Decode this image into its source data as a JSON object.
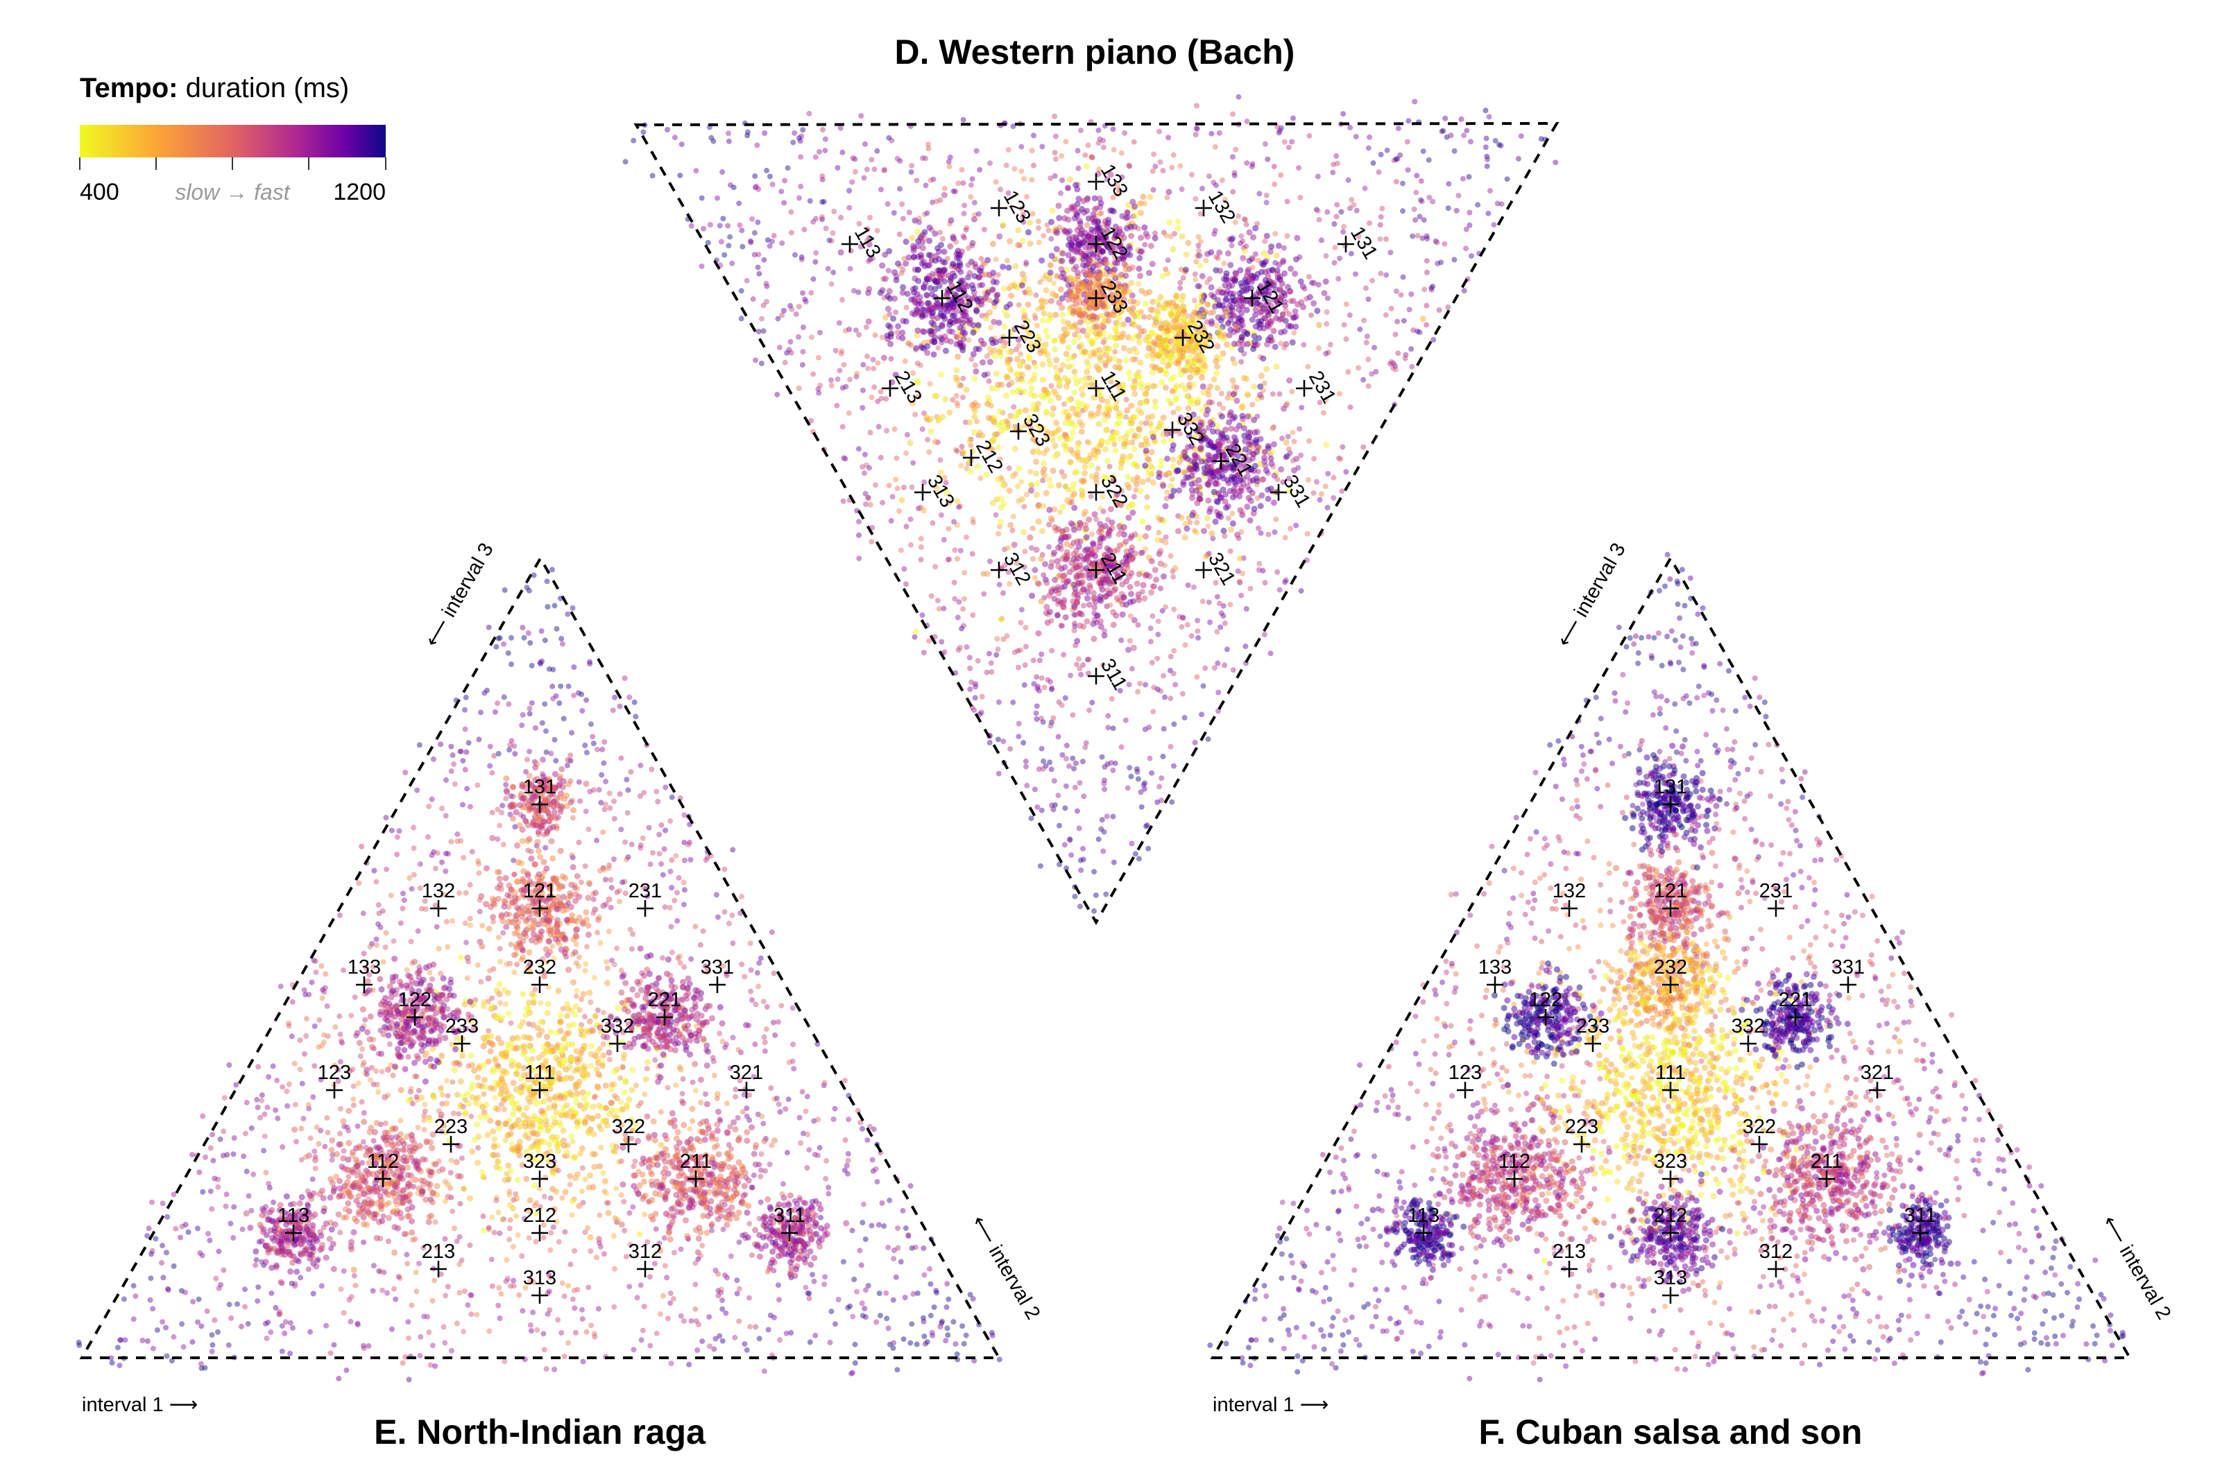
{
  "legend": {
    "title_bold": "Tempo:",
    "title_rest": " duration (ms)",
    "min_label": "400",
    "mid_label": "slow → fast",
    "max_label": "1200",
    "colors": [
      "#f0f921",
      "#fca636",
      "#e16462",
      "#b12a90",
      "#6a00a8",
      "#0d0887"
    ]
  },
  "chart_data": [
    {
      "type": "scatter",
      "title": "D. Western piano (Bach)",
      "orientation": "inverted",
      "markers": [
        {
          "label": "111",
          "x": 0.333,
          "y": 0.333,
          "size": 0.6
        },
        {
          "label": "112",
          "x": 0.333,
          "y": 0.667,
          "size": 0.0
        },
        {
          "label": "113",
          "x": 0.333,
          "y": 0.833,
          "size": 0.0
        },
        {
          "label": "121",
          "x": 0.667,
          "y": 0.667,
          "size": 0.0
        },
        {
          "label": "122",
          "x": 0.5,
          "y": 0.75,
          "size": 0.0
        },
        {
          "label": "123",
          "x": 0.4,
          "y": 0.8,
          "size": 0.0
        },
        {
          "label": "131",
          "x": 0.833,
          "y": 0.833,
          "size": 0.0
        },
        {
          "label": "132",
          "x": 0.667,
          "y": 0.833,
          "size": 0.0
        },
        {
          "label": "133",
          "x": 0.571,
          "y": 0.857,
          "size": 0.0
        },
        {
          "label": "211",
          "x": 0.167,
          "y": 0.333,
          "size": 0.0
        },
        {
          "label": "212",
          "x": 0.2,
          "y": 0.6,
          "size": 0.0
        },
        {
          "label": "213",
          "x": 0.222,
          "y": 0.778,
          "size": 0.0
        },
        {
          "label": "221",
          "x": 0.5,
          "y": 0.5,
          "size": 0.0
        },
        {
          "label": "223",
          "x": 0.286,
          "y": 0.714,
          "size": 0.0
        },
        {
          "label": "231",
          "x": 0.667,
          "y": 0.5,
          "size": 0.0
        },
        {
          "label": "232",
          "x": 0.429,
          "y": 0.571,
          "size": 0.0
        },
        {
          "label": "233",
          "x": 0.5,
          "y": 0.667,
          "size": 0.0
        },
        {
          "label": "311",
          "x": 0.1,
          "y": 0.2,
          "size": 0.0
        },
        {
          "label": "312",
          "x": 0.167,
          "y": 0.5,
          "size": 0.0
        },
        {
          "label": "313",
          "x": 0.143,
          "y": 0.571,
          "size": 0.0
        },
        {
          "label": "321",
          "x": 0.333,
          "y": 0.5,
          "size": 0.0
        },
        {
          "label": "322",
          "x": 0.286,
          "y": 0.429,
          "size": 0.0
        },
        {
          "label": "323",
          "x": 0.25,
          "y": 0.5,
          "size": 0.0
        },
        {
          "label": "331",
          "x": 0.556,
          "y": 0.556,
          "size": 0.0
        },
        {
          "label": "332",
          "x": 0.4,
          "y": 0.4,
          "size": 0.0
        }
      ]
    },
    {
      "type": "scatter",
      "title": "E. North-Indian raga",
      "xlabel": "interval 1 ⟶",
      "ylabel": "⟵ interval 2",
      "zlabel": "⟵ interval 3",
      "markers": [
        {
          "label": "111",
          "x": 0.333,
          "y": 0.333
        },
        {
          "label": "112",
          "x": 0.25,
          "y": 0.25
        },
        {
          "label": "113",
          "x": 0.2,
          "y": 0.2
        },
        {
          "label": "121",
          "x": 0.25,
          "y": 0.5
        },
        {
          "label": "122",
          "x": 0.2,
          "y": 0.4
        },
        {
          "label": "123",
          "x": 0.167,
          "y": 0.333
        },
        {
          "label": "131",
          "x": 0.2,
          "y": 0.6
        },
        {
          "label": "132",
          "x": 0.167,
          "y": 0.5
        },
        {
          "label": "133",
          "x": 0.143,
          "y": 0.429
        },
        {
          "label": "211",
          "x": 0.5,
          "y": 0.25
        },
        {
          "label": "212",
          "x": 0.4,
          "y": 0.2
        },
        {
          "label": "213",
          "x": 0.333,
          "y": 0.167
        },
        {
          "label": "221",
          "x": 0.4,
          "y": 0.4
        },
        {
          "label": "223",
          "x": 0.286,
          "y": 0.286
        },
        {
          "label": "231",
          "x": 0.333,
          "y": 0.5
        },
        {
          "label": "232",
          "x": 0.286,
          "y": 0.429
        },
        {
          "label": "233",
          "x": 0.25,
          "y": 0.375
        },
        {
          "label": "311",
          "x": 0.6,
          "y": 0.2
        },
        {
          "label": "312",
          "x": 0.5,
          "y": 0.167
        },
        {
          "label": "313",
          "x": 0.429,
          "y": 0.143
        },
        {
          "label": "321",
          "x": 0.5,
          "y": 0.333
        },
        {
          "label": "322",
          "x": 0.429,
          "y": 0.286
        },
        {
          "label": "323",
          "x": 0.375,
          "y": 0.25
        },
        {
          "label": "331",
          "x": 0.429,
          "y": 0.429
        },
        {
          "label": "332",
          "x": 0.375,
          "y": 0.375
        }
      ]
    },
    {
      "type": "scatter",
      "title": "F. Cuban salsa and son",
      "xlabel": "interval 1 ⟶",
      "ylabel": "⟵ interval 2",
      "zlabel": "⟵ interval 3",
      "markers": [
        {
          "label": "111",
          "x": 0.333,
          "y": 0.333
        },
        {
          "label": "112",
          "x": 0.25,
          "y": 0.25
        },
        {
          "label": "113",
          "x": 0.2,
          "y": 0.2
        },
        {
          "label": "121",
          "x": 0.25,
          "y": 0.5
        },
        {
          "label": "122",
          "x": 0.2,
          "y": 0.4
        },
        {
          "label": "123",
          "x": 0.167,
          "y": 0.333
        },
        {
          "label": "131",
          "x": 0.2,
          "y": 0.6
        },
        {
          "label": "132",
          "x": 0.167,
          "y": 0.5
        },
        {
          "label": "133",
          "x": 0.143,
          "y": 0.429
        },
        {
          "label": "211",
          "x": 0.5,
          "y": 0.25
        },
        {
          "label": "212",
          "x": 0.4,
          "y": 0.2
        },
        {
          "label": "213",
          "x": 0.333,
          "y": 0.167
        },
        {
          "label": "221",
          "x": 0.4,
          "y": 0.4
        },
        {
          "label": "223",
          "x": 0.286,
          "y": 0.286
        },
        {
          "label": "231",
          "x": 0.333,
          "y": 0.5
        },
        {
          "label": "232",
          "x": 0.286,
          "y": 0.429
        },
        {
          "label": "233",
          "x": 0.25,
          "y": 0.375
        },
        {
          "label": "311",
          "x": 0.6,
          "y": 0.2
        },
        {
          "label": "312",
          "x": 0.5,
          "y": 0.167
        },
        {
          "label": "313",
          "x": 0.429,
          "y": 0.143
        },
        {
          "label": "321",
          "x": 0.5,
          "y": 0.333
        },
        {
          "label": "322",
          "x": 0.429,
          "y": 0.286
        },
        {
          "label": "323",
          "x": 0.375,
          "y": 0.25
        },
        {
          "label": "331",
          "x": 0.429,
          "y": 0.429
        },
        {
          "label": "332",
          "x": 0.375,
          "y": 0.375
        }
      ]
    }
  ]
}
